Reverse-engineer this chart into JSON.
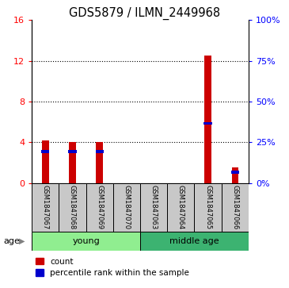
{
  "title": "GDS5879 / ILMN_2449968",
  "samples": [
    "GSM1847067",
    "GSM1847068",
    "GSM1847069",
    "GSM1847070",
    "GSM1847063",
    "GSM1847064",
    "GSM1847065",
    "GSM1847066"
  ],
  "count_values": [
    4.2,
    4.0,
    4.0,
    0.0,
    0.0,
    0.0,
    12.5,
    1.5
  ],
  "percentile_values": [
    3.2,
    3.2,
    3.2,
    0.0,
    0.0,
    0.0,
    6.0,
    1.2
  ],
  "ylim_left": [
    0,
    16
  ],
  "ylim_right": [
    0,
    100
  ],
  "yticks_left": [
    0,
    4,
    8,
    12,
    16
  ],
  "yticks_right": [
    0,
    25,
    50,
    75,
    100
  ],
  "groups": [
    {
      "label": "young",
      "start": 0,
      "end": 4,
      "color": "#90EE90"
    },
    {
      "label": "middle age",
      "start": 4,
      "end": 8,
      "color": "#3CB371"
    }
  ],
  "bar_color_red": "#CC0000",
  "bar_color_blue": "#0000CC",
  "plot_bg": "#FFFFFF",
  "sample_box_color": "#C8C8C8",
  "age_label": "age",
  "legend_count": "count",
  "legend_pct": "percentile rank within the sample",
  "bar_width": 0.25
}
